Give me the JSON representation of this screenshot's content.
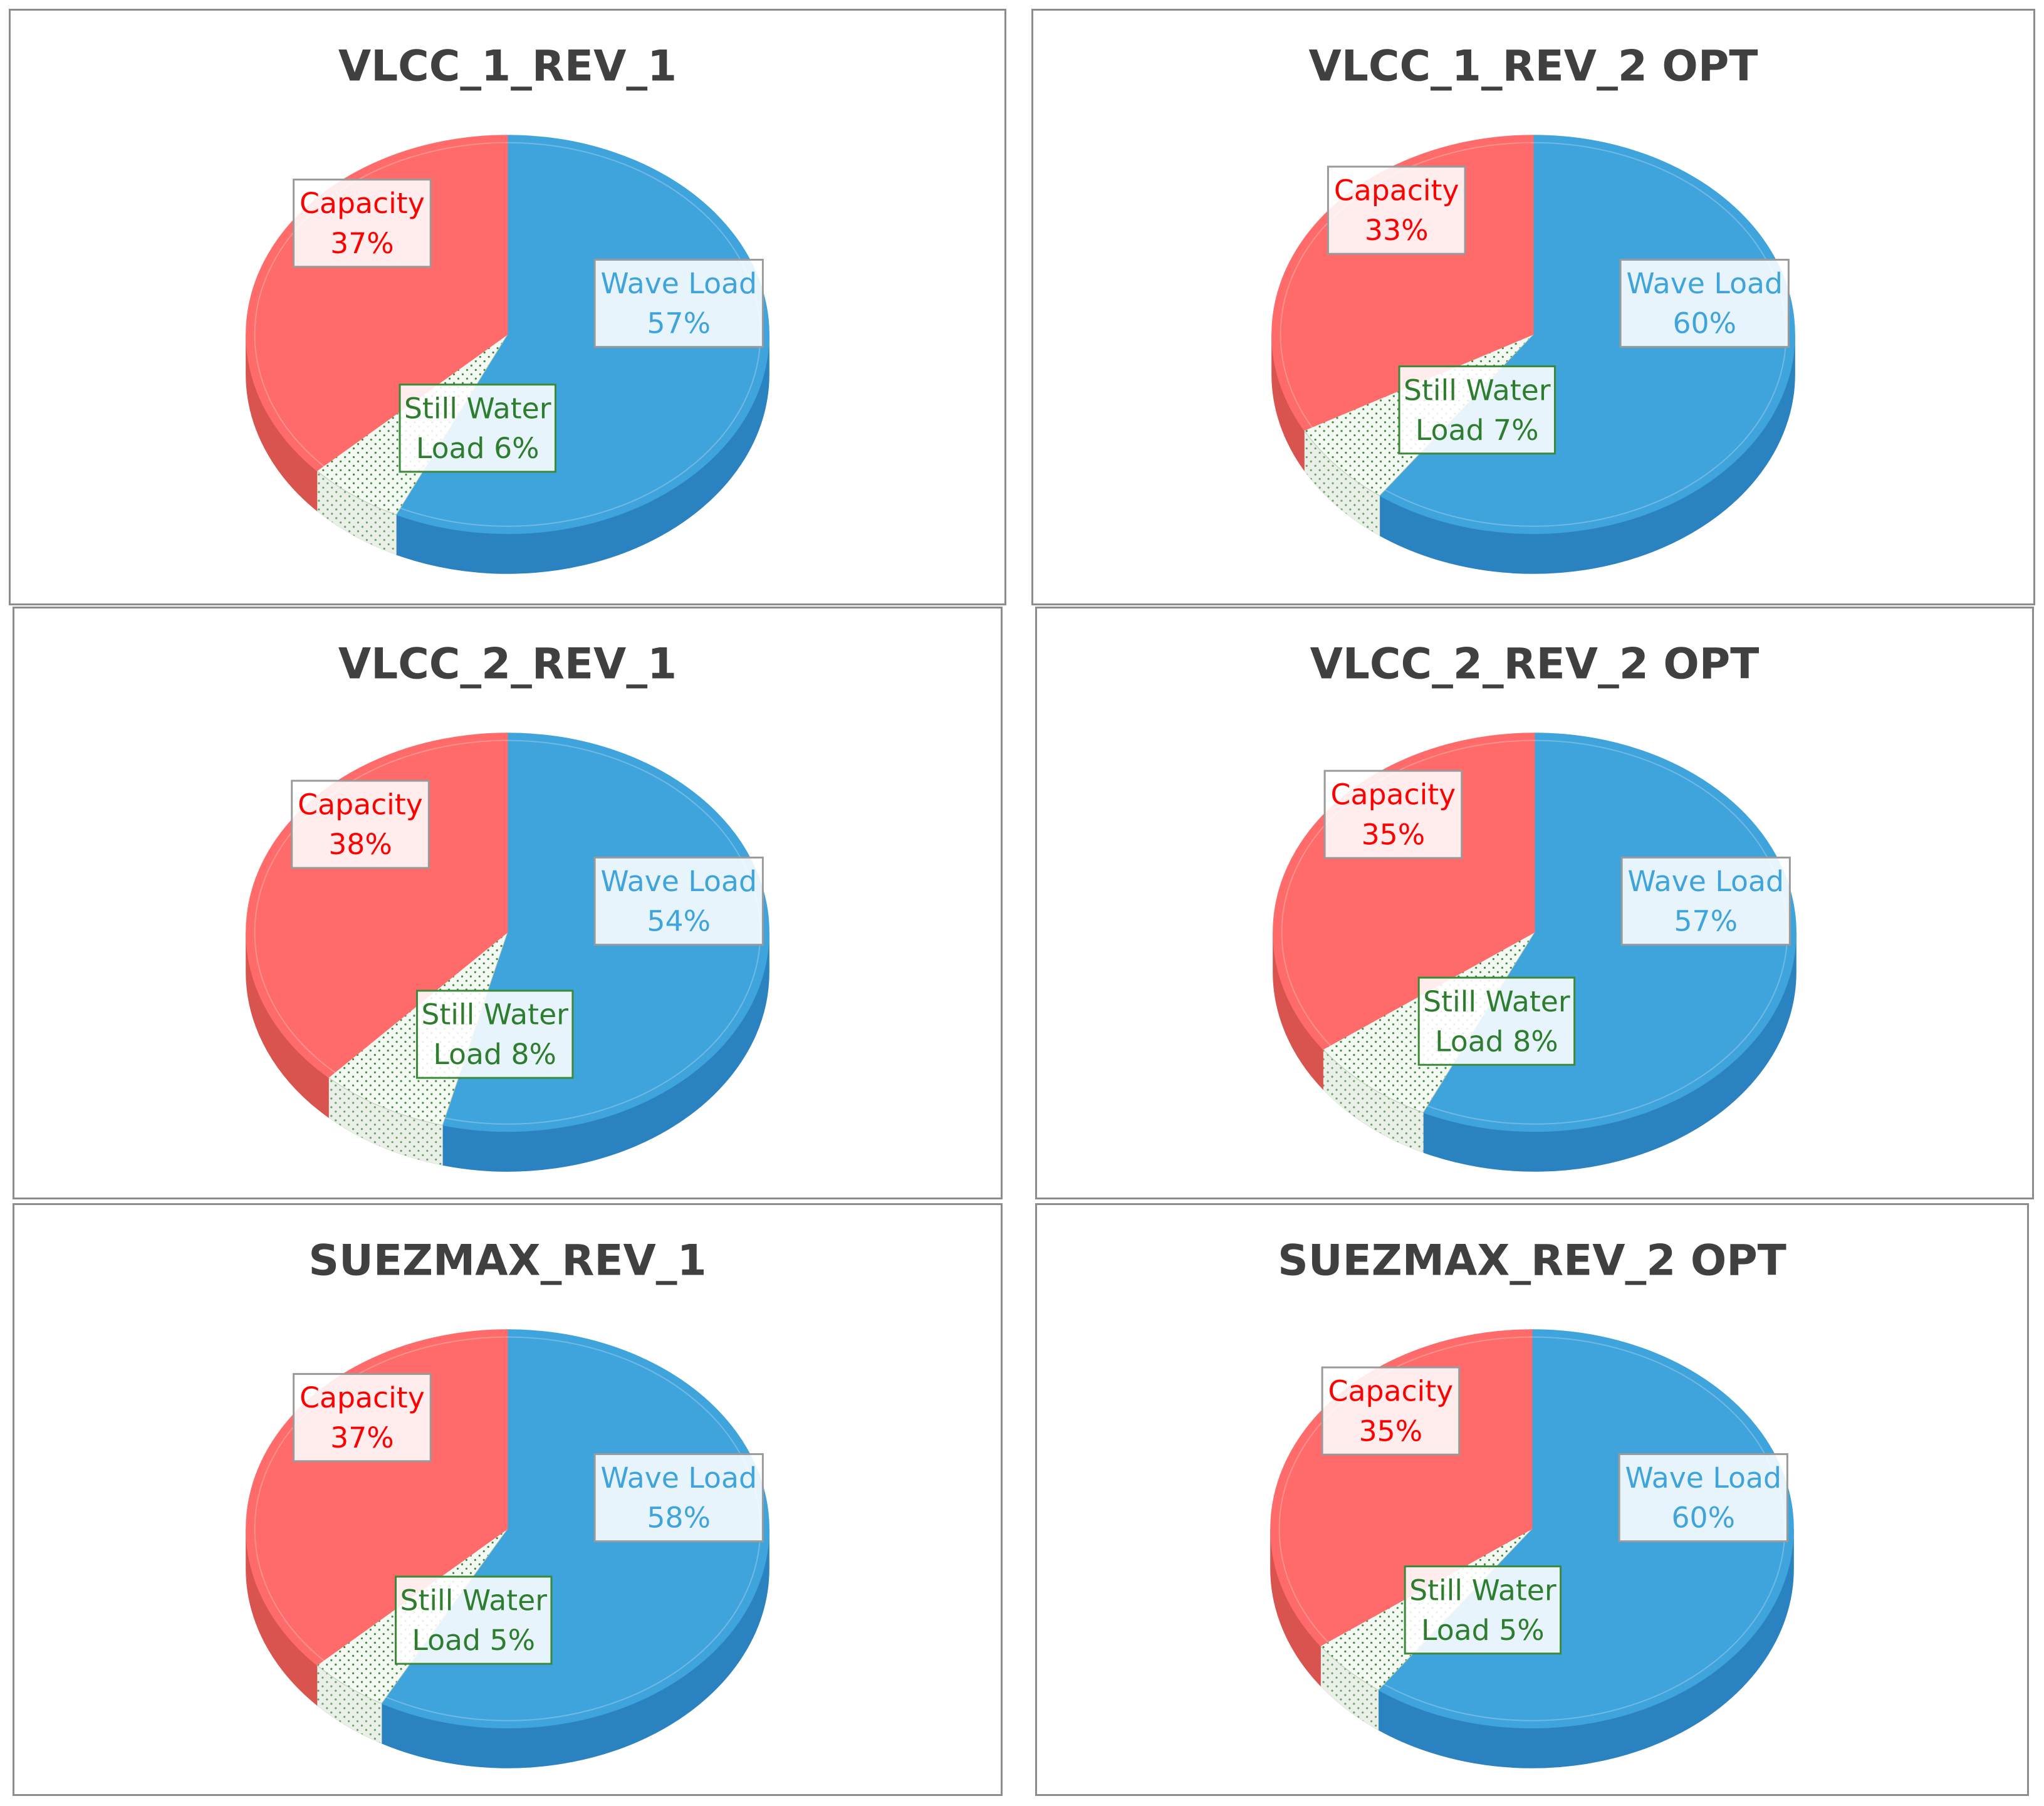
{
  "colors": {
    "capacity": "#ff6b6b",
    "capacity_dark": "#d9534f",
    "wave": "#3fa3dc",
    "wave_dark": "#2b82c0",
    "still": "#f5f9f3",
    "still_dot": "#3a8a3a",
    "capacity_text": "#ff0000",
    "wave_text": "#3fa3dc",
    "still_text": "#2e7d2e",
    "title_text": "#404040"
  },
  "chart_data": [
    {
      "type": "pie",
      "title": "VLCC_1_REV_1",
      "slices": [
        {
          "label": "Wave Load",
          "value": 57,
          "text": "57%"
        },
        {
          "label": "Still Water Load",
          "value": 6,
          "text": "6%"
        },
        {
          "label": "Capacity",
          "value": 37,
          "text": "37%"
        }
      ],
      "labels": {
        "wave": [
          "Wave Load",
          "57%"
        ],
        "still": [
          "Still Water",
          "Load  6%"
        ],
        "capacity": [
          "Capacity",
          "37%"
        ]
      }
    },
    {
      "type": "pie",
      "title": "VLCC_1_REV_2 OPT",
      "slices": [
        {
          "label": "Wave Load",
          "value": 60,
          "text": "60%"
        },
        {
          "label": "Still Water Load",
          "value": 7,
          "text": "7%"
        },
        {
          "label": "Capacity",
          "value": 33,
          "text": "33%"
        }
      ],
      "labels": {
        "wave": [
          "Wave Load",
          "60%"
        ],
        "still": [
          "Still Water",
          "Load  7%"
        ],
        "capacity": [
          "Capacity",
          "33%"
        ]
      }
    },
    {
      "type": "pie",
      "title": "VLCC_2_REV_1",
      "slices": [
        {
          "label": "Wave Load",
          "value": 54,
          "text": "54%"
        },
        {
          "label": "Still Water Load",
          "value": 8,
          "text": "8%"
        },
        {
          "label": "Capacity",
          "value": 38,
          "text": "38%"
        }
      ],
      "labels": {
        "wave": [
          "Wave Load",
          "54%"
        ],
        "still": [
          "Still Water",
          "Load  8%"
        ],
        "capacity": [
          "Capacity",
          "38%"
        ]
      }
    },
    {
      "type": "pie",
      "title": "VLCC_2_REV_2 OPT",
      "slices": [
        {
          "label": "Wave Load",
          "value": 57,
          "text": "57%"
        },
        {
          "label": "Still Water Load",
          "value": 8,
          "text": "8%"
        },
        {
          "label": "Capacity",
          "value": 35,
          "text": "35%"
        }
      ],
      "labels": {
        "wave": [
          "Wave Load",
          "57%"
        ],
        "still": [
          "Still Water",
          "Load  8%"
        ],
        "capacity": [
          "Capacity",
          "35%"
        ]
      }
    },
    {
      "type": "pie",
      "title": "SUEZMAX_REV_1",
      "slices": [
        {
          "label": "Wave Load",
          "value": 58,
          "text": "58%"
        },
        {
          "label": "Still Water Load",
          "value": 5,
          "text": "5%"
        },
        {
          "label": "Capacity",
          "value": 37,
          "text": "37%"
        }
      ],
      "labels": {
        "wave": [
          "Wave Load",
          "58%"
        ],
        "still": [
          "Still Water",
          "Load 5%"
        ],
        "capacity": [
          "Capacity",
          "37%"
        ]
      }
    },
    {
      "type": "pie",
      "title": "SUEZMAX_REV_2 OPT",
      "slices": [
        {
          "label": "Wave Load",
          "value": 60,
          "text": "60%"
        },
        {
          "label": "Still Water Load",
          "value": 5,
          "text": "5%"
        },
        {
          "label": "Capacity",
          "value": 35,
          "text": "35%"
        }
      ],
      "labels": {
        "wave": [
          "Wave Load",
          "60%"
        ],
        "still": [
          "Still Water",
          "Load  5%"
        ],
        "capacity": [
          "Capacity",
          "35%"
        ]
      }
    }
  ]
}
